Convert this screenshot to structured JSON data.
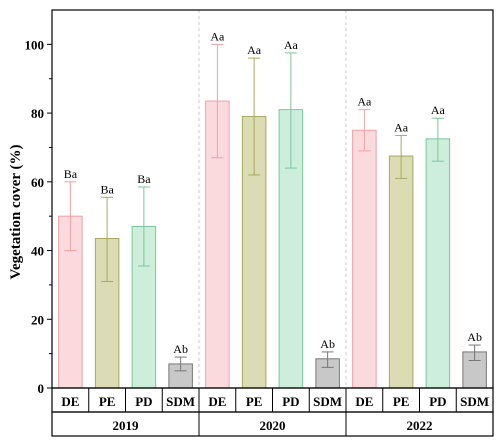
{
  "chart_data": {
    "type": "bar",
    "ylabel": "Vegetation cover (%)",
    "ylim": [
      0,
      110
    ],
    "yticks": [
      0,
      20,
      40,
      60,
      80,
      100
    ],
    "grid": false,
    "groups": [
      {
        "year": "2019",
        "bars": [
          {
            "category": "DE",
            "value": 50,
            "err_low": 40,
            "err_high": 60,
            "label": "Ba",
            "color": "#fadadd",
            "edge": "#f2a0a6"
          },
          {
            "category": "PE",
            "value": 43.5,
            "err_low": 31,
            "err_high": 55.5,
            "label": "Ba",
            "color": "#dcdcb4",
            "edge": "#a8a860"
          },
          {
            "category": "PD",
            "value": 47,
            "err_low": 35.5,
            "err_high": 58.5,
            "label": "Ba",
            "color": "#cdeedb",
            "edge": "#79c79a"
          },
          {
            "category": "SDM",
            "value": 7,
            "err_low": 5,
            "err_high": 9,
            "label": "Ab",
            "color": "#c8c8c8",
            "edge": "#777777"
          }
        ]
      },
      {
        "year": "2020",
        "bars": [
          {
            "category": "DE",
            "value": 83.5,
            "err_low": 67,
            "err_high": 100,
            "label": "Aa",
            "color": "#fadadd",
            "edge": "#f2a0a6"
          },
          {
            "category": "PE",
            "value": 79,
            "err_low": 62,
            "err_high": 96,
            "label": "Aa",
            "color": "#dcdcb4",
            "edge": "#a8a860"
          },
          {
            "category": "PD",
            "value": 81,
            "err_low": 64,
            "err_high": 97.5,
            "label": "Aa",
            "color": "#cdeedb",
            "edge": "#79c79a"
          },
          {
            "category": "SDM",
            "value": 8.5,
            "err_low": 6,
            "err_high": 10.5,
            "label": "Ab",
            "color": "#c8c8c8",
            "edge": "#777777"
          }
        ]
      },
      {
        "year": "2022",
        "bars": [
          {
            "category": "DE",
            "value": 75,
            "err_low": 69,
            "err_high": 81,
            "label": "Aa",
            "color": "#fadadd",
            "edge": "#f2a0a6"
          },
          {
            "category": "PE",
            "value": 67.5,
            "err_low": 61,
            "err_high": 73.5,
            "label": "Aa",
            "color": "#dcdcb4",
            "edge": "#a8a860"
          },
          {
            "category": "PD",
            "value": 72.5,
            "err_low": 66,
            "err_high": 78.5,
            "label": "Aa",
            "color": "#cdeedb",
            "edge": "#79c79a"
          },
          {
            "category": "SDM",
            "value": 10.5,
            "err_low": 8,
            "err_high": 12.5,
            "label": "Ab",
            "color": "#c8c8c8",
            "edge": "#777777"
          }
        ]
      }
    ]
  }
}
